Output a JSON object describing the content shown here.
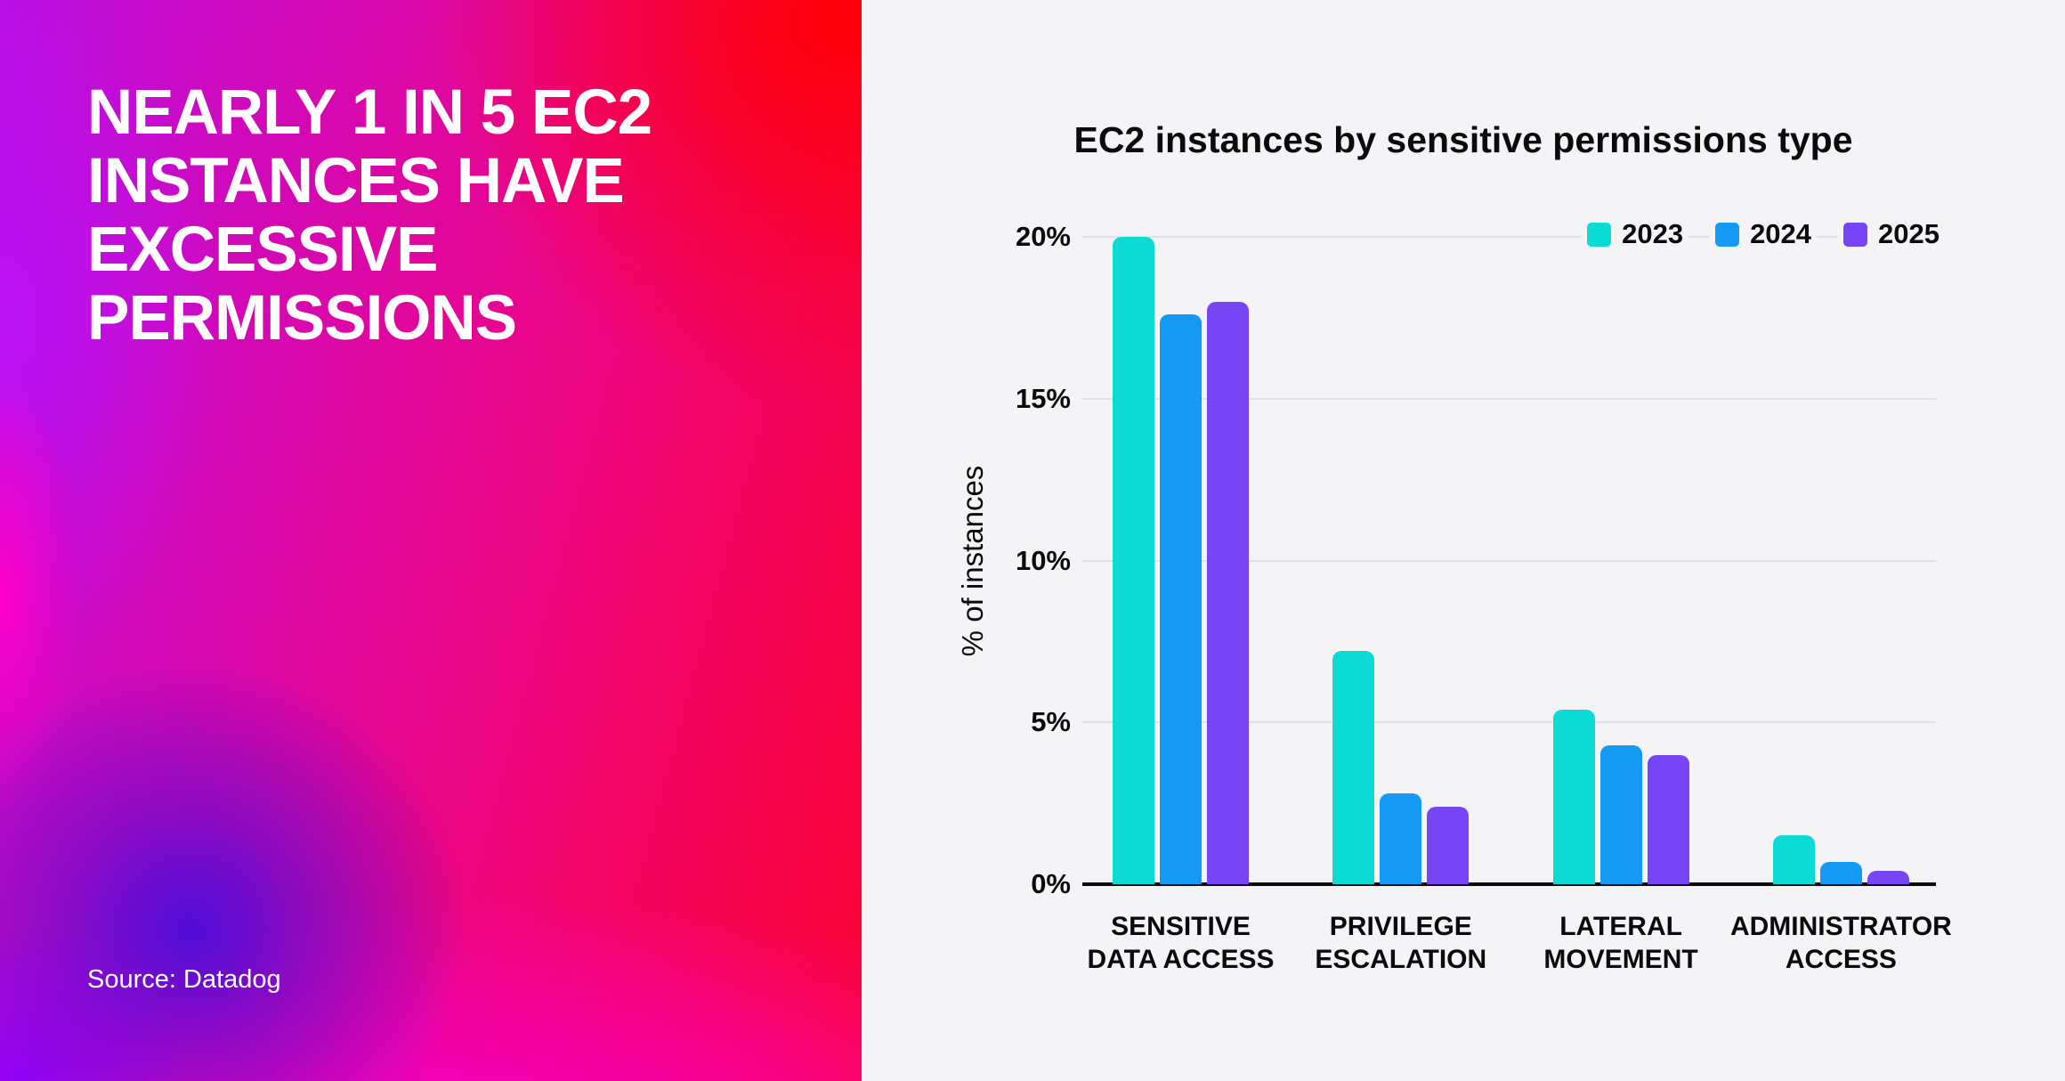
{
  "left_panel": {
    "headline_lines": [
      "NEARLY 1 IN 5 EC2",
      "INSTANCES HAVE",
      "EXCESSIVE",
      "PERMISSIONS"
    ],
    "source": "Source: Datadog"
  },
  "chart_data": {
    "type": "bar",
    "title": "EC2 instances by sensitive permissions type",
    "ylabel": "% of instances",
    "ylim": [
      0,
      20
    ],
    "yticks": [
      {
        "value": 20,
        "label": "20%"
      },
      {
        "value": 15,
        "label": "15%"
      },
      {
        "value": 10,
        "label": "10%"
      },
      {
        "value": 5,
        "label": "5%"
      },
      {
        "value": 0,
        "label": "0%"
      }
    ],
    "categories": [
      "SENSITIVE\nDATA ACCESS",
      "PRIVILEGE\nESCALATION",
      "LATERAL\nMOVEMENT",
      "ADMINISTRATOR\nACCESS"
    ],
    "series": [
      {
        "name": "2023",
        "color": "#0CDAD4",
        "values": [
          20.0,
          7.2,
          5.4,
          1.5
        ]
      },
      {
        "name": "2024",
        "color": "#149AF5",
        "values": [
          17.6,
          2.8,
          4.3,
          0.7
        ]
      },
      {
        "name": "2025",
        "color": "#7845F5",
        "values": [
          18.0,
          2.4,
          4.0,
          0.4
        ]
      }
    ],
    "legend_position": "top-right",
    "grid": true,
    "background": "#F4F4F6"
  }
}
